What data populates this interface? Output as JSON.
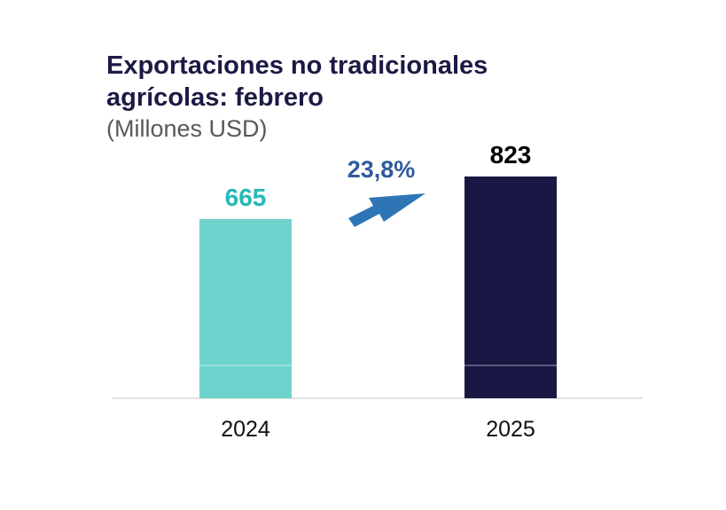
{
  "chart_data": {
    "type": "bar",
    "title": "Exportaciones no tradicionales agrícolas: febrero",
    "subtitle": "(Millones USD)",
    "categories": [
      "2024",
      "2025"
    ],
    "values": [
      665,
      823
    ],
    "data_labels": [
      "665",
      "823"
    ],
    "bar_colors": [
      "#6dd3cc",
      "#1a1744"
    ],
    "label_colors": [
      "#27b8b8",
      "#000000"
    ],
    "growth_label": "23,8%",
    "growth_color": "#2e5b9f",
    "arrow_color": "#2e75b6",
    "axis_color": "#bfbfbf",
    "ylim": [
      0,
      823
    ],
    "grid": false
  }
}
